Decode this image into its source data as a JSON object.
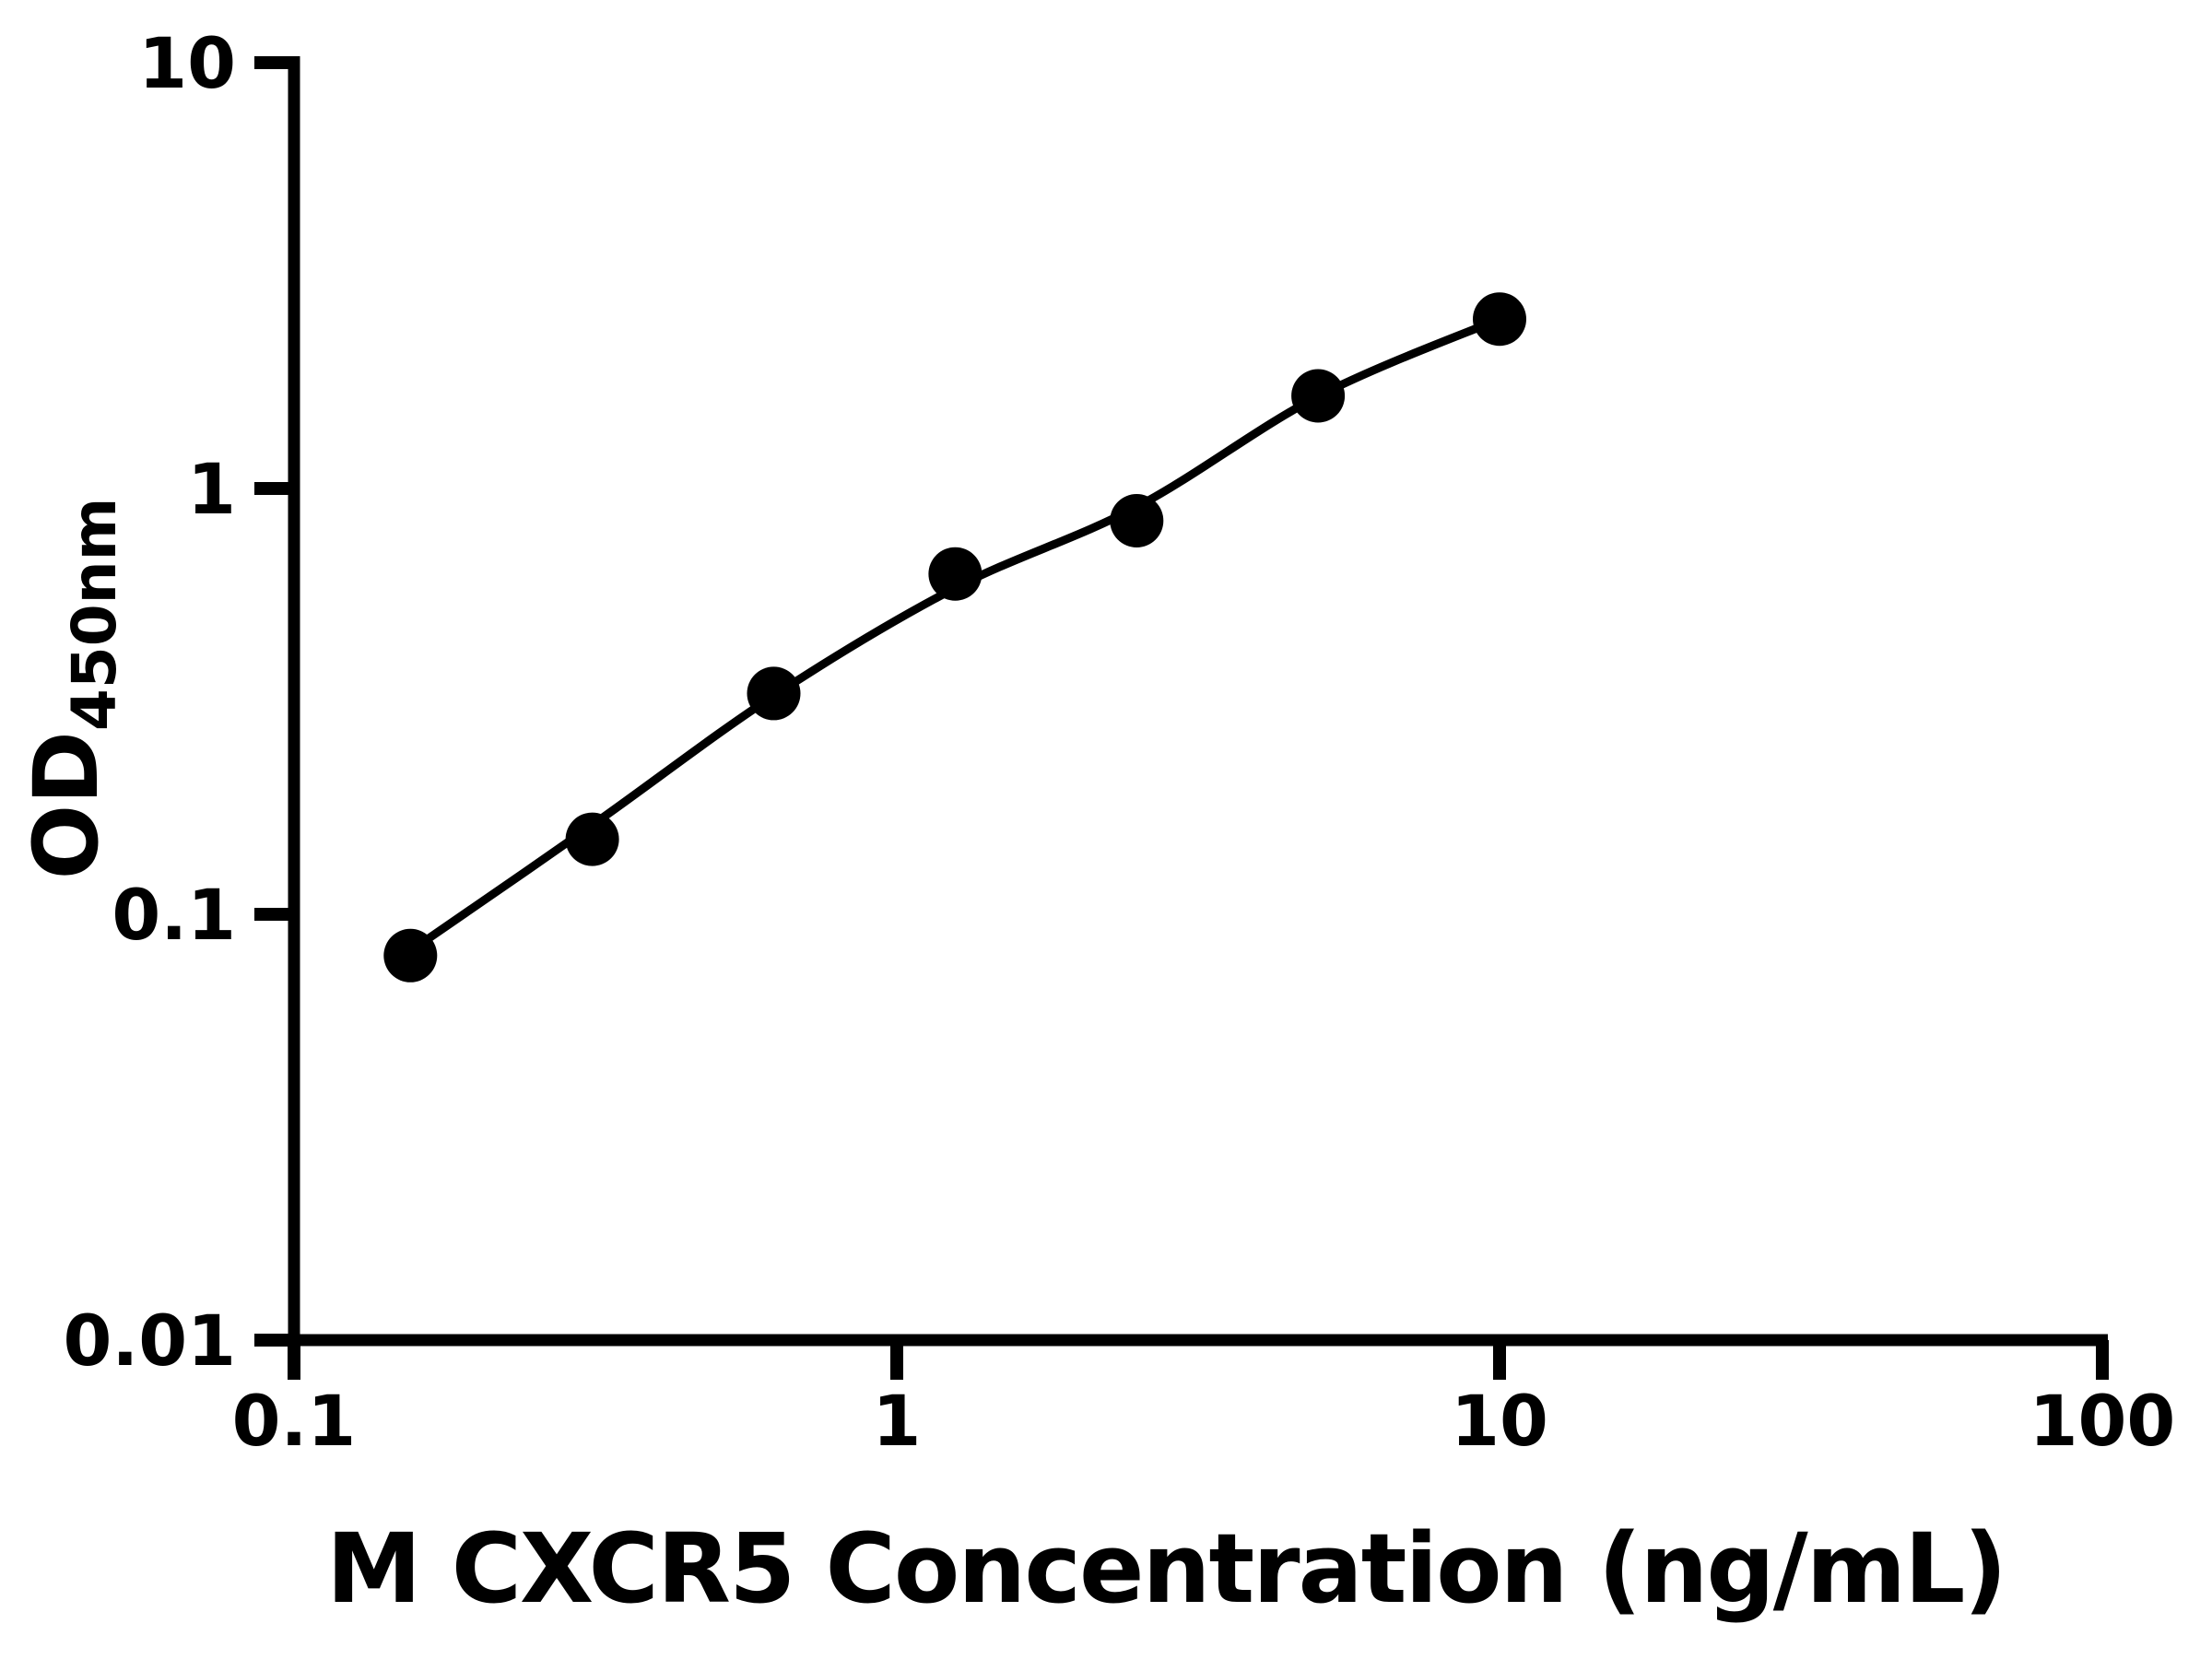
{
  "figure": {
    "background_color": "#ffffff",
    "foreground_color": "#000000"
  },
  "chart_data": {
    "type": "scatter",
    "title": "",
    "xlabel": "M CXCR5 Concentration (ng/mL)",
    "ylabel_main": "OD",
    "ylabel_sub": "450nm",
    "xscale": "log",
    "yscale": "log",
    "xlim": [
      0.1,
      100
    ],
    "ylim": [
      0.01,
      10
    ],
    "grid": false,
    "legend": null,
    "x_ticks": [
      {
        "value": 0.1,
        "label": "0.1"
      },
      {
        "value": 1,
        "label": "1"
      },
      {
        "value": 10,
        "label": "10"
      },
      {
        "value": 100,
        "label": "100"
      }
    ],
    "y_ticks": [
      {
        "value": 10,
        "label": "10"
      },
      {
        "value": 1,
        "label": "1"
      },
      {
        "value": 0.1,
        "label": "0.1"
      },
      {
        "value": 0.01,
        "label": "0.01"
      }
    ],
    "series": [
      {
        "name": "standard-points",
        "marker": "circle",
        "color": "#000000",
        "points": [
          {
            "x": 0.156,
            "y": 0.08
          },
          {
            "x": 0.3125,
            "y": 0.15
          },
          {
            "x": 0.625,
            "y": 0.33
          },
          {
            "x": 1.25,
            "y": 0.63
          },
          {
            "x": 2.5,
            "y": 0.84
          },
          {
            "x": 5,
            "y": 1.65
          },
          {
            "x": 10,
            "y": 2.5
          }
        ]
      }
    ],
    "fit_curve": {
      "name": "standard-curve-fit",
      "color": "#000000",
      "points": [
        {
          "x": 0.156,
          "y": 0.082
        },
        {
          "x": 0.3125,
          "y": 0.162
        },
        {
          "x": 0.625,
          "y": 0.326
        },
        {
          "x": 1.25,
          "y": 0.584
        },
        {
          "x": 2.5,
          "y": 0.905
        },
        {
          "x": 5,
          "y": 1.646
        },
        {
          "x": 10,
          "y": 2.5
        }
      ]
    }
  }
}
